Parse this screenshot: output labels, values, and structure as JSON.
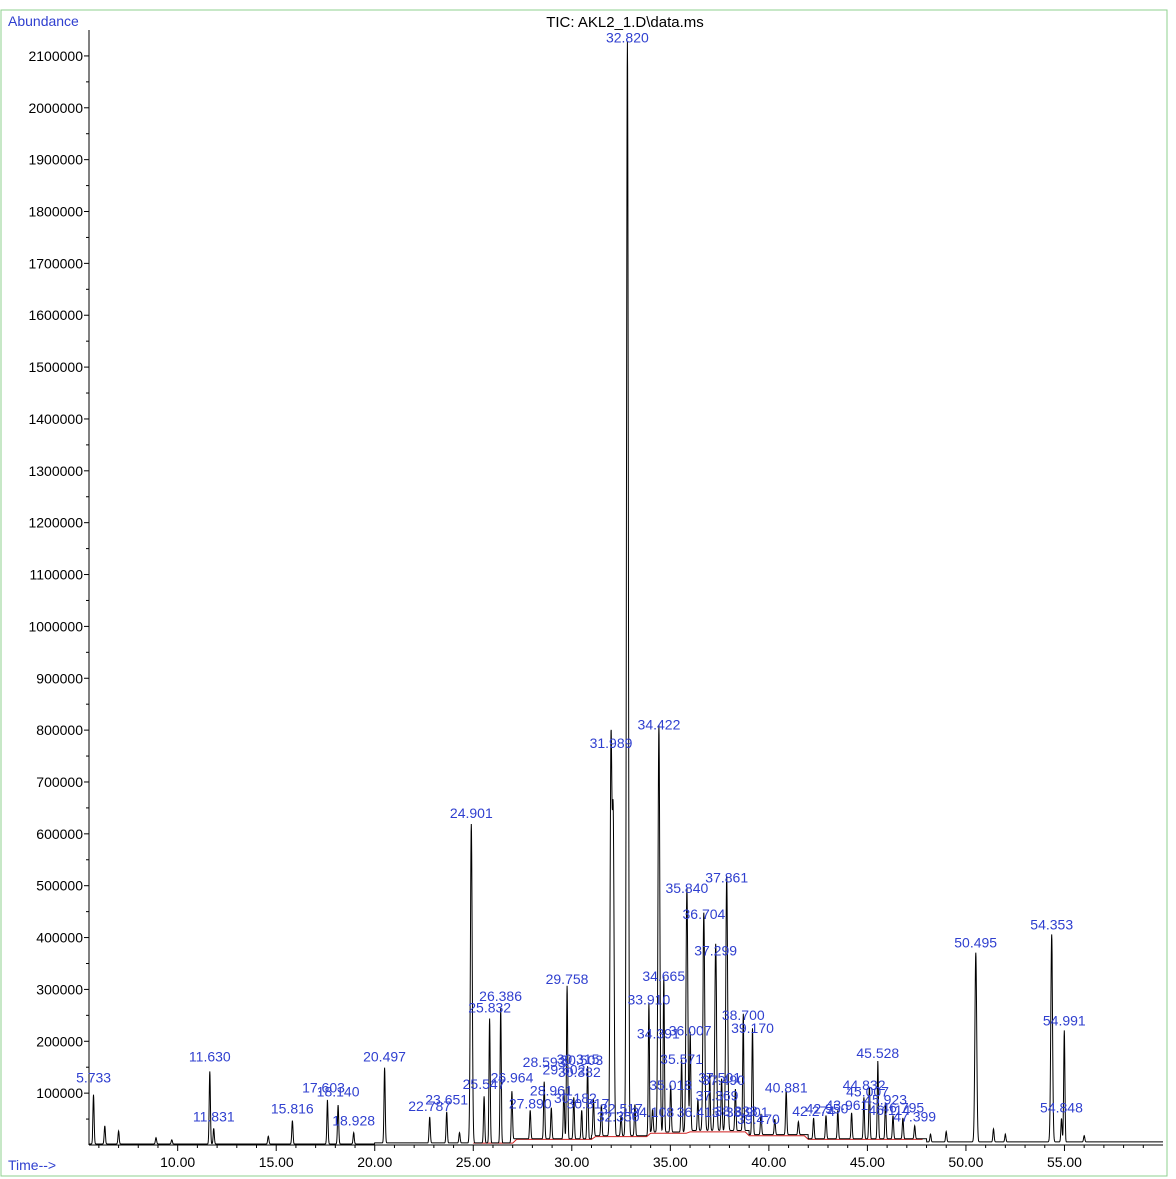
{
  "chart_data": {
    "type": "line",
    "title": "TIC: AKL2_1.D\\data.ms",
    "ylabel": "Abundance",
    "xlabel": "Time-->",
    "xlim": [
      5.5,
      60
    ],
    "ylim": [
      0,
      2150000
    ],
    "x_ticks": [
      "10.00",
      "15.00",
      "20.00",
      "25.00",
      "30.00",
      "35.00",
      "40.00",
      "45.00",
      "50.00",
      "55.00"
    ],
    "y_ticks": [
      "100000",
      "200000",
      "300000",
      "400000",
      "500000",
      "600000",
      "700000",
      "800000",
      "900000",
      "1000000",
      "1100000",
      "1200000",
      "1300000",
      "1400000",
      "1500000",
      "1600000",
      "1700000",
      "1800000",
      "1900000",
      "2000000",
      "2100000"
    ],
    "series": [
      {
        "color": "#000000",
        "peaks": [
          {
            "x": 5.73,
            "y": 95000
          },
          {
            "x": 6.3,
            "y": 35000
          },
          {
            "x": 7.0,
            "y": 25000
          },
          {
            "x": 8.9,
            "y": 12000
          },
          {
            "x": 9.7,
            "y": 8000
          },
          {
            "x": 11.63,
            "y": 140000
          },
          {
            "x": 11.83,
            "y": 30000
          },
          {
            "x": 14.6,
            "y": 15000
          },
          {
            "x": 15.82,
            "y": 45000
          },
          {
            "x": 17.6,
            "y": 85000
          },
          {
            "x": 18.14,
            "y": 75000
          },
          {
            "x": 18.93,
            "y": 22000
          },
          {
            "x": 20.5,
            "y": 145000
          },
          {
            "x": 22.79,
            "y": 50000
          },
          {
            "x": 23.65,
            "y": 60000
          },
          {
            "x": 24.3,
            "y": 20000
          },
          {
            "x": 24.9,
            "y": 615000
          },
          {
            "x": 25.55,
            "y": 90000
          },
          {
            "x": 25.83,
            "y": 240000
          },
          {
            "x": 26.39,
            "y": 260000
          },
          {
            "x": 26.96,
            "y": 100000
          },
          {
            "x": 27.89,
            "y": 55000
          },
          {
            "x": 28.6,
            "y": 110000
          },
          {
            "x": 28.96,
            "y": 60000
          },
          {
            "x": 29.6,
            "y": 95000
          },
          {
            "x": 29.76,
            "y": 295000
          },
          {
            "x": 30.1,
            "y": 80000
          },
          {
            "x": 30.5,
            "y": 55000
          },
          {
            "x": 30.8,
            "y": 140000
          },
          {
            "x": 31.1,
            "y": 70000
          },
          {
            "x": 31.5,
            "y": 60000
          },
          {
            "x": 31.99,
            "y": 750000
          },
          {
            "x": 32.1,
            "y": 600000
          },
          {
            "x": 32.5,
            "y": 40000
          },
          {
            "x": 32.82,
            "y": 2110000
          },
          {
            "x": 33.2,
            "y": 60000
          },
          {
            "x": 33.91,
            "y": 255000
          },
          {
            "x": 34.1,
            "y": 45000
          },
          {
            "x": 34.42,
            "y": 785000
          },
          {
            "x": 34.67,
            "y": 300000
          },
          {
            "x": 35.02,
            "y": 90000
          },
          {
            "x": 35.57,
            "y": 140000
          },
          {
            "x": 35.84,
            "y": 470000
          },
          {
            "x": 36.01,
            "y": 190000
          },
          {
            "x": 36.4,
            "y": 60000
          },
          {
            "x": 36.7,
            "y": 420000
          },
          {
            "x": 37.0,
            "y": 110000
          },
          {
            "x": 37.3,
            "y": 360000
          },
          {
            "x": 37.6,
            "y": 100000
          },
          {
            "x": 37.86,
            "y": 490000
          },
          {
            "x": 38.3,
            "y": 80000
          },
          {
            "x": 38.7,
            "y": 225000
          },
          {
            "x": 39.17,
            "y": 205000
          },
          {
            "x": 39.6,
            "y": 40000
          },
          {
            "x": 40.3,
            "y": 30000
          },
          {
            "x": 40.88,
            "y": 85000
          },
          {
            "x": 41.5,
            "y": 25000
          },
          {
            "x": 42.27,
            "y": 40000
          },
          {
            "x": 42.9,
            "y": 45000
          },
          {
            "x": 43.5,
            "y": 55000
          },
          {
            "x": 44.2,
            "y": 50000
          },
          {
            "x": 44.82,
            "y": 80000
          },
          {
            "x": 45.1,
            "y": 100000
          },
          {
            "x": 45.53,
            "y": 150000
          },
          {
            "x": 45.92,
            "y": 70000
          },
          {
            "x": 46.3,
            "y": 45000
          },
          {
            "x": 46.8,
            "y": 40000
          },
          {
            "x": 47.4,
            "y": 25000
          },
          {
            "x": 48.2,
            "y": 15000
          },
          {
            "x": 49.0,
            "y": 20000
          },
          {
            "x": 50.5,
            "y": 365000
          },
          {
            "x": 51.4,
            "y": 25000
          },
          {
            "x": 52.0,
            "y": 15000
          },
          {
            "x": 54.35,
            "y": 400000
          },
          {
            "x": 54.85,
            "y": 45000
          },
          {
            "x": 54.99,
            "y": 215000
          },
          {
            "x": 56.0,
            "y": 12000
          }
        ]
      }
    ],
    "peak_labels": [
      {
        "text": "5.733",
        "x": 5.733,
        "y": 115000
      },
      {
        "text": "11.630",
        "x": 11.63,
        "y": 155000
      },
      {
        "text": "11.831",
        "x": 11.831,
        "y": 40000
      },
      {
        "text": "15.816",
        "x": 15.816,
        "y": 55000
      },
      {
        "text": "17.603",
        "x": 17.4,
        "y": 95000
      },
      {
        "text": "18.140",
        "x": 18.14,
        "y": 88000
      },
      {
        "text": "18.928",
        "x": 18.928,
        "y": 32000
      },
      {
        "text": "20.497",
        "x": 20.497,
        "y": 155000
      },
      {
        "text": "22.787",
        "x": 22.787,
        "y": 60000
      },
      {
        "text": "23.651",
        "x": 23.651,
        "y": 72000
      },
      {
        "text": "24.901",
        "x": 24.901,
        "y": 625000
      },
      {
        "text": "25.547",
        "x": 25.547,
        "y": 102000
      },
      {
        "text": "25.832",
        "x": 25.832,
        "y": 250000
      },
      {
        "text": "26.386",
        "x": 26.386,
        "y": 272000
      },
      {
        "text": "26.964",
        "x": 26.964,
        "y": 115000
      },
      {
        "text": "27.890",
        "x": 27.89,
        "y": 65000
      },
      {
        "text": "28.593",
        "x": 28.593,
        "y": 145000
      },
      {
        "text": "28.961",
        "x": 28.961,
        "y": 90000
      },
      {
        "text": "29.602",
        "x": 29.602,
        "y": 130000
      },
      {
        "text": "29.758",
        "x": 29.758,
        "y": 305000
      },
      {
        "text": "30.315",
        "x": 30.315,
        "y": 150000
      },
      {
        "text": "30.503",
        "x": 30.503,
        "y": 148000
      },
      {
        "text": "30.382",
        "x": 30.382,
        "y": 125000
      },
      {
        "text": "30.182",
        "x": 30.182,
        "y": 75000
      },
      {
        "text": "30.817",
        "x": 30.817,
        "y": 65000
      },
      {
        "text": "32.517",
        "x": 32.517,
        "y": 55000
      },
      {
        "text": "32.350",
        "x": 32.35,
        "y": 40000
      },
      {
        "text": "31.989",
        "x": 31.989,
        "y": 760000
      },
      {
        "text": "32.820",
        "x": 32.82,
        "y": 2120000
      },
      {
        "text": "33.910",
        "x": 33.91,
        "y": 265000
      },
      {
        "text": "34.108",
        "x": 34.108,
        "y": 48000
      },
      {
        "text": "34.422",
        "x": 34.422,
        "y": 795000
      },
      {
        "text": "34.665",
        "x": 34.665,
        "y": 310000
      },
      {
        "text": "34.391",
        "x": 34.391,
        "y": 200000
      },
      {
        "text": "35.018",
        "x": 35.018,
        "y": 100000
      },
      {
        "text": "35.571",
        "x": 35.571,
        "y": 150000
      },
      {
        "text": "35.840",
        "x": 35.84,
        "y": 480000
      },
      {
        "text": "36.007",
        "x": 36.007,
        "y": 205000
      },
      {
        "text": "36.413",
        "x": 36.413,
        "y": 48000
      },
      {
        "text": "36.704",
        "x": 36.704,
        "y": 430000
      },
      {
        "text": "37.299",
        "x": 37.299,
        "y": 360000
      },
      {
        "text": "37.501",
        "x": 37.501,
        "y": 115000
      },
      {
        "text": "37.490",
        "x": 37.7,
        "y": 110000
      },
      {
        "text": "37.369",
        "x": 37.369,
        "y": 80000
      },
      {
        "text": "37.861",
        "x": 37.861,
        "y": 500000
      },
      {
        "text": "38.338",
        "x": 38.338,
        "y": 50000
      },
      {
        "text": "38.901",
        "x": 38.901,
        "y": 48000
      },
      {
        "text": "39.470",
        "x": 39.47,
        "y": 35000
      },
      {
        "text": "38.700",
        "x": 38.7,
        "y": 235000
      },
      {
        "text": "39.170",
        "x": 39.17,
        "y": 210000
      },
      {
        "text": "40.881",
        "x": 40.881,
        "y": 95000
      },
      {
        "text": "42.274",
        "x": 42.274,
        "y": 50000
      },
      {
        "text": "42.950",
        "x": 42.95,
        "y": 55000
      },
      {
        "text": "43.961",
        "x": 43.961,
        "y": 62000
      },
      {
        "text": "44.832",
        "x": 44.832,
        "y": 100000
      },
      {
        "text": "45.007",
        "x": 45.007,
        "y": 88000
      },
      {
        "text": "45.528",
        "x": 45.528,
        "y": 162000
      },
      {
        "text": "45.923",
        "x": 45.923,
        "y": 72000
      },
      {
        "text": "46.114",
        "x": 46.114,
        "y": 52000
      },
      {
        "text": "46.795",
        "x": 46.795,
        "y": 57000
      },
      {
        "text": "47.399",
        "x": 47.399,
        "y": 40000
      },
      {
        "text": "50.495",
        "x": 50.495,
        "y": 375000
      },
      {
        "text": "54.353",
        "x": 54.353,
        "y": 410000
      },
      {
        "text": "54.848",
        "x": 54.848,
        "y": 57000
      },
      {
        "text": "54.991",
        "x": 54.991,
        "y": 225000
      }
    ]
  }
}
